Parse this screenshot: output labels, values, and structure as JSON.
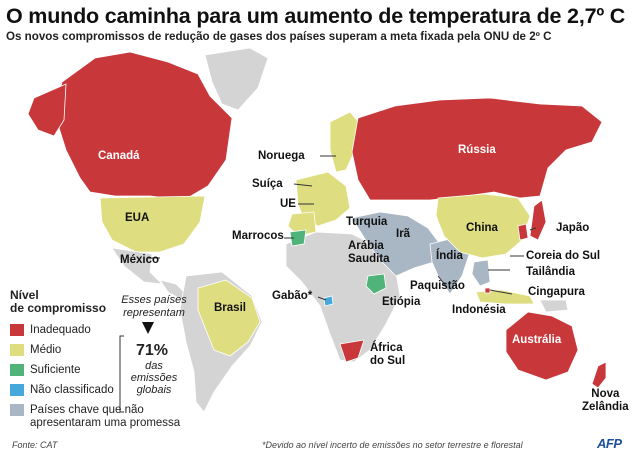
{
  "title": "O mundo caminha para um aumento de temperatura de 2,7º C",
  "subtitle": "Os novos compromissos de redução de gases dos países superam a meta fixada pela ONU de 2º C",
  "colors": {
    "inadequado": "#c8383b",
    "medio": "#dede80",
    "suficiente": "#4fb37a",
    "nao_classificado": "#46a8da",
    "nao_prometeram": "#a9b6c3",
    "sem_dados": "#d4d4d4",
    "fronteiras": "#ffffff"
  },
  "countries": {
    "canada": "Canadá",
    "russia": "Rússia",
    "noruega": "Noruega",
    "suica": "Suíça",
    "ue": "UE",
    "eua": "EUA",
    "marrocos": "Marrocos",
    "turquia": "Turquia",
    "ira": "Irã",
    "arabia": "Arábia\nSaudita",
    "china": "China",
    "japao": "Japão",
    "coreia": "Coreia do Sul",
    "mexico": "México",
    "india": "Índia",
    "tailandia": "Tailândia",
    "paquistao": "Paquistão",
    "cingapura": "Cingapura",
    "brasil": "Brasil",
    "gabao": "Gabão*",
    "etiopia": "Etiópia",
    "indonesia": "Indonésia",
    "australia": "Austrália",
    "africa": "África\ndo Sul",
    "nz": "Nova\nZelândia"
  },
  "legend": {
    "title": "Nível\nde compromisso",
    "items": [
      {
        "label": "Inadequado",
        "color_key": "inadequado"
      },
      {
        "label": "Médio",
        "color_key": "medio"
      },
      {
        "label": "Suficiente",
        "color_key": "suficiente"
      },
      {
        "label": "Não classificado",
        "color_key": "nao_classificado"
      },
      {
        "label": "Países chave que não\napresentaram uma promessa",
        "color_key": "nao_prometeram"
      }
    ]
  },
  "annotation": {
    "heading": "Esses países representam",
    "percent": "71%",
    "sub": "das emissões globais"
  },
  "source": "Fonte: CAT",
  "footnote": "*Devido ao nível incerto de emissões no setor terrestre e florestal",
  "logo": "AFP"
}
